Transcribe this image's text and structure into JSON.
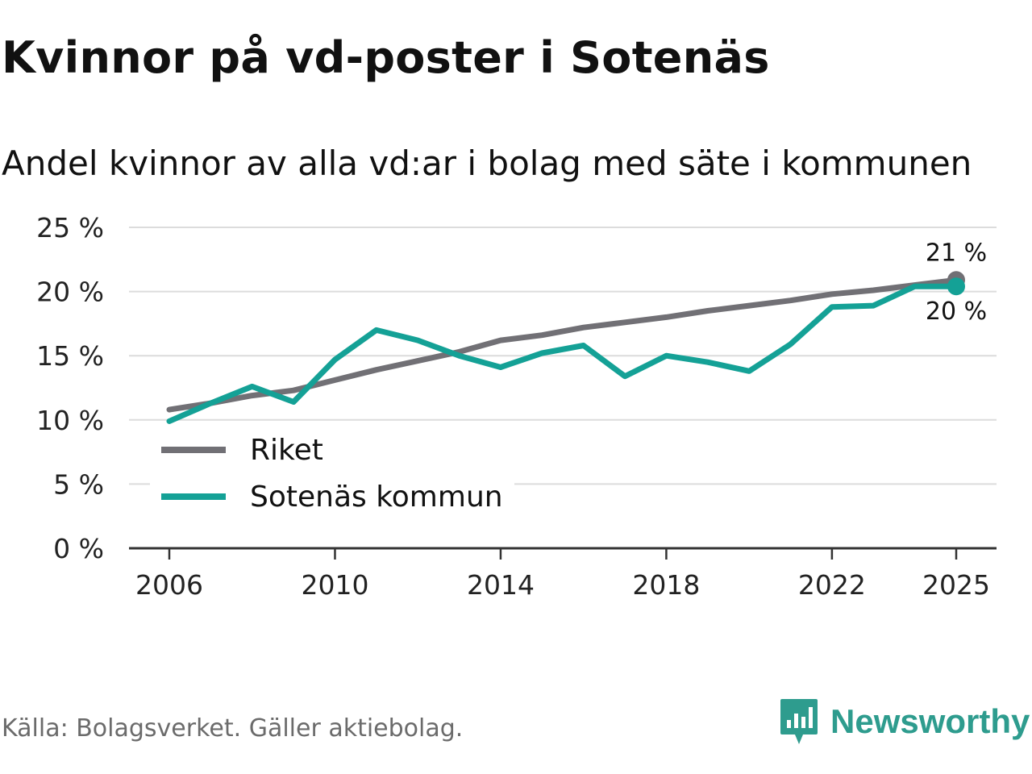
{
  "title": "Kvinnor på vd-poster i Sotenäs",
  "subtitle": "Andel kvinnor av alla vd:ar i bolag med säte i kommunen",
  "source": "Källa: Bolagsverket. Gäller aktiebolag.",
  "brand": "Newsworthy",
  "colors": {
    "riket": "#717075",
    "sotenas": "#14a196",
    "grid": "#dcdcdc",
    "axis": "#333333",
    "brand": "#2e9c8e"
  },
  "chart_data": {
    "type": "line",
    "title": "Kvinnor på vd-poster i Sotenäs",
    "ylabel": "",
    "xlabel": "",
    "ylim": [
      0,
      25
    ],
    "xlim": [
      2006,
      2025
    ],
    "y_ticks": [
      {
        "value": 0,
        "label": "0 %"
      },
      {
        "value": 5,
        "label": "5 %"
      },
      {
        "value": 10,
        "label": "10 %"
      },
      {
        "value": 15,
        "label": "15 %"
      },
      {
        "value": 20,
        "label": "20 %"
      },
      {
        "value": 25,
        "label": "25 %"
      }
    ],
    "x_ticks": [
      {
        "value": 2006,
        "label": "2006"
      },
      {
        "value": 2010,
        "label": "2010"
      },
      {
        "value": 2014,
        "label": "2014"
      },
      {
        "value": 2018,
        "label": "2018"
      },
      {
        "value": 2022,
        "label": "2022"
      },
      {
        "value": 2025,
        "label": "2025"
      }
    ],
    "x": [
      2006,
      2007,
      2008,
      2009,
      2010,
      2011,
      2012,
      2013,
      2014,
      2015,
      2016,
      2017,
      2018,
      2019,
      2020,
      2021,
      2022,
      2023,
      2024,
      2025
    ],
    "series": [
      {
        "key": "riket",
        "name": "Riket",
        "values": [
          10.8,
          11.3,
          11.9,
          12.3,
          13.1,
          13.9,
          14.6,
          15.3,
          16.2,
          16.6,
          17.2,
          17.6,
          18.0,
          18.5,
          18.9,
          19.3,
          19.8,
          20.1,
          20.5,
          20.9
        ],
        "end_label": "21 %"
      },
      {
        "key": "sotenas",
        "name": "Sotenäs kommun",
        "values": [
          9.9,
          11.3,
          12.6,
          11.4,
          14.7,
          17.0,
          16.2,
          15.0,
          14.1,
          15.2,
          15.8,
          13.4,
          15.0,
          14.5,
          13.8,
          15.9,
          18.8,
          18.9,
          20.4,
          20.4
        ],
        "end_label": "20 %"
      }
    ],
    "legend_position": "lower-left"
  }
}
